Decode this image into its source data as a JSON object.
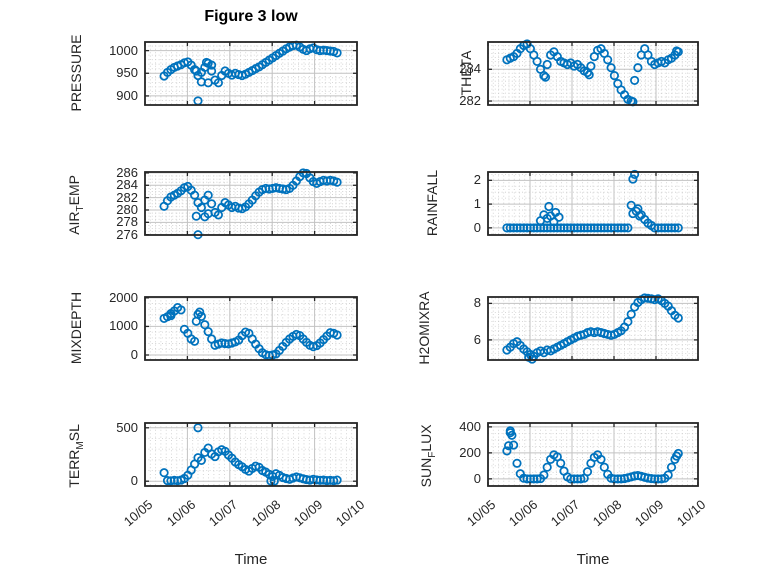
{
  "title": "Figure 3 low",
  "xlabel": "Time",
  "colors": {
    "marker": "#0072BD",
    "axis": "#262626",
    "grid_major": "#c2c2c2",
    "grid_minor": "#cccccc",
    "tick_label": "#262626",
    "title": "#000000"
  },
  "chart_data": {
    "type": "scatter",
    "xlabel": "Time",
    "x_tick_labels": [
      "10/05",
      "10/06",
      "10/07",
      "10/08",
      "10/09",
      "10/10"
    ],
    "xlim": [
      0,
      5
    ],
    "x_minor_step": 0.125,
    "grid": "major solid + minor dotted",
    "legend": "none",
    "x_unit": "days since 10/05",
    "subplots": [
      {
        "id": "pressure",
        "ylabel_pre": "PRESSURE",
        "ylabel_sub": "",
        "ylabel_post": "",
        "ylim": [
          880,
          1019
        ],
        "yticks": [
          900,
          950,
          1000
        ],
        "y_minor_step": 10,
        "x_start": 0.45,
        "x_step": 0.08,
        "values": [
          944,
          952,
          958,
          963,
          966,
          969,
          973,
          975,
          968,
          958,
          945,
          952,
          963,
          972,
          955,
          935,
          929,
          945,
          955,
          950,
          946,
          950,
          947,
          945,
          948,
          952,
          956,
          960,
          964,
          969,
          974,
          979,
          984,
          989,
          994,
          999,
          1004,
          1008,
          1011,
          1012,
          1008,
          1003,
          1000,
          1004,
          1006,
          1002,
          1000,
          1001,
          1000,
          999,
          998,
          995
        ],
        "extra_points": [
          [
            1.25,
            889
          ],
          [
            1.33,
            931
          ],
          [
            1.45,
            974
          ],
          [
            1.49,
            929
          ],
          [
            1.57,
            968
          ],
          [
            1.21,
            955
          ]
        ]
      },
      {
        "id": "theta",
        "ylabel_pre": "THETA",
        "ylabel_sub": "",
        "ylabel_post": "",
        "ylim": [
          281.75,
          285.72
        ],
        "yticks": [
          282,
          284
        ],
        "y_minor_step": 0.25,
        "x_start": 0.45,
        "x_step": 0.08,
        "values": [
          284.6,
          284.7,
          284.8,
          285.0,
          285.3,
          285.5,
          285.6,
          285.3,
          284.9,
          284.5,
          284.0,
          283.6,
          284.3,
          284.9,
          285.1,
          284.8,
          284.5,
          284.4,
          284.3,
          284.4,
          284.2,
          284.3,
          284.1,
          283.9,
          283.8,
          284.2,
          284.8,
          285.2,
          285.3,
          285.0,
          284.6,
          284.1,
          283.6,
          283.1,
          282.7,
          282.4,
          282.1,
          282.0,
          283.3,
          284.1,
          284.9,
          285.3,
          284.9,
          284.5,
          284.3,
          284.4,
          284.5,
          284.4,
          284.6,
          284.7,
          284.9,
          285.1
        ],
        "extra_points": [
          [
            1.37,
            283.5
          ],
          [
            2.41,
            283.65
          ],
          [
            3.45,
            281.95
          ],
          [
            4.49,
            285.15
          ]
        ]
      },
      {
        "id": "air-temp",
        "ylabel_pre": "AIR",
        "ylabel_sub": "T",
        "ylabel_post": "EMP",
        "ylim": [
          275.95,
          286.15
        ],
        "yticks": [
          276,
          278,
          280,
          282,
          284,
          286
        ],
        "y_minor_step": 0.5,
        "x_start": 0.45,
        "x_step": 0.08,
        "values": [
          280.6,
          281.5,
          282.1,
          282.4,
          282.7,
          283.1,
          283.6,
          283.8,
          283.2,
          282.4,
          281.2,
          280.4,
          281.6,
          282.4,
          281.0,
          279.6,
          279.2,
          280.4,
          281.2,
          280.8,
          280.4,
          280.6,
          280.3,
          280.2,
          280.5,
          281.0,
          281.6,
          282.3,
          282.9,
          283.3,
          283.5,
          283.4,
          283.5,
          283.6,
          283.5,
          283.4,
          283.3,
          283.5,
          284.0,
          284.7,
          285.4,
          286.0,
          285.9,
          285.2,
          284.6,
          284.3,
          284.6,
          284.8,
          284.7,
          284.8,
          284.7,
          284.5
        ],
        "extra_points": [
          [
            1.25,
            276.0
          ],
          [
            1.21,
            279.0
          ],
          [
            1.41,
            278.9
          ],
          [
            1.49,
            279.4
          ]
        ]
      },
      {
        "id": "rainfall",
        "ylabel_pre": "RAINFALL",
        "ylabel_sub": "",
        "ylabel_post": "",
        "ylim": [
          -0.3,
          2.35
        ],
        "yticks": [
          0,
          1,
          2
        ],
        "y_minor_step": 0.25,
        "x_start": 0.45,
        "x_step": 0.08,
        "values": [
          0,
          0,
          0,
          0,
          0,
          0,
          0,
          0,
          0,
          0,
          0,
          0,
          0,
          0,
          0,
          0,
          0,
          0,
          0,
          0,
          0,
          0,
          0,
          0,
          0,
          0,
          0,
          0,
          0,
          0,
          0,
          0,
          0,
          0,
          0,
          0,
          0,
          0.95,
          2.25,
          0.8,
          0.55,
          0.35,
          0.2,
          0.1,
          0,
          0,
          0,
          0,
          0,
          0,
          0,
          0
        ],
        "extra_points": [
          [
            1.25,
            0.3
          ],
          [
            1.33,
            0.55
          ],
          [
            1.41,
            0.4
          ],
          [
            1.45,
            0.9
          ],
          [
            1.49,
            0.5
          ],
          [
            1.57,
            0.25
          ],
          [
            1.61,
            0.65
          ],
          [
            1.69,
            0.45
          ],
          [
            3.45,
            2.05
          ],
          [
            3.45,
            0.6
          ],
          [
            3.53,
            0.7
          ],
          [
            3.61,
            0.5
          ]
        ]
      },
      {
        "id": "mixdepth",
        "ylabel_pre": "MIXDEPTH",
        "ylabel_sub": "",
        "ylabel_post": "",
        "ylim": [
          -175,
          2030
        ],
        "yticks": [
          0,
          1000,
          2000
        ],
        "y_minor_step": 200,
        "x_start": 0.45,
        "x_step": 0.08,
        "values": [
          1280,
          1340,
          1450,
          1540,
          1660,
          1580,
          900,
          760,
          560,
          480,
          1420,
          1350,
          1060,
          820,
          560,
          340,
          380,
          420,
          400,
          390,
          420,
          460,
          520,
          680,
          800,
          760,
          560,
          380,
          220,
          80,
          10,
          -20,
          0,
          40,
          160,
          300,
          440,
          560,
          650,
          720,
          680,
          560,
          440,
          340,
          290,
          330,
          420,
          540,
          660,
          780,
          760,
          700
        ],
        "extra_points": [
          [
            0.61,
            1380
          ],
          [
            1.21,
            1180
          ],
          [
            1.29,
            1500
          ]
        ]
      },
      {
        "id": "h2omixra",
        "ylabel_pre": "H2OMIXRA",
        "ylabel_sub": "",
        "ylabel_post": "",
        "ylim": [
          4.9,
          8.35
        ],
        "yticks": [
          6,
          8
        ],
        "y_minor_step": 0.25,
        "x_start": 0.45,
        "x_step": 0.08,
        "values": [
          5.45,
          5.6,
          5.8,
          5.9,
          5.7,
          5.5,
          5.35,
          5.2,
          5.1,
          5.3,
          5.4,
          5.3,
          5.45,
          5.4,
          5.5,
          5.6,
          5.7,
          5.8,
          5.9,
          6.0,
          6.1,
          6.2,
          6.25,
          6.3,
          6.4,
          6.45,
          6.4,
          6.45,
          6.4,
          6.35,
          6.3,
          6.25,
          6.3,
          6.4,
          6.5,
          6.7,
          7.0,
          7.4,
          7.8,
          8.05,
          8.2,
          8.3,
          8.28,
          8.25,
          8.2,
          8.25,
          8.15,
          8.0,
          7.85,
          7.6,
          7.35,
          7.2
        ],
        "extra_points": [
          [
            0.97,
            5.05
          ],
          [
            1.05,
            4.95
          ]
        ]
      },
      {
        "id": "terr-msl",
        "ylabel_pre": "TERR",
        "ylabel_sub": "M",
        "ylabel_post": "SL",
        "ylim": [
          -45,
          545
        ],
        "yticks": [
          0,
          500
        ],
        "y_minor_step": 100,
        "x_start": 0.45,
        "x_step": 0.08,
        "values": [
          80,
          6,
          4,
          8,
          5,
          10,
          25,
          55,
          105,
          160,
          220,
          195,
          270,
          310,
          255,
          230,
          275,
          295,
          280,
          245,
          215,
          180,
          155,
          135,
          110,
          95,
          120,
          140,
          130,
          100,
          85,
          65,
          45,
          70,
          55,
          35,
          25,
          18,
          30,
          40,
          32,
          22,
          15,
          10,
          18,
          12,
          8,
          10,
          6,
          8,
          5,
          10
        ],
        "extra_points": [
          [
            1.25,
            500
          ],
          [
            2.97,
            2
          ],
          [
            3.05,
            1
          ]
        ]
      },
      {
        "id": "sun-flux",
        "ylabel_pre": "SUN",
        "ylabel_sub": "F",
        "ylabel_post": "LUX",
        "ylim": [
          -55,
          430
        ],
        "yticks": [
          0,
          200,
          400
        ],
        "y_minor_step": 50,
        "x_start": 0.45,
        "x_step": 0.08,
        "values": [
          215,
          355,
          260,
          120,
          40,
          5,
          0,
          0,
          0,
          0,
          2,
          30,
          90,
          150,
          185,
          170,
          120,
          60,
          15,
          0,
          0,
          0,
          0,
          5,
          55,
          120,
          165,
          185,
          150,
          90,
          35,
          5,
          0,
          0,
          0,
          3,
          8,
          15,
          22,
          25,
          20,
          12,
          6,
          2,
          0,
          0,
          0,
          5,
          30,
          90,
          150,
          195
        ],
        "extra_points": [
          [
            0.49,
            255
          ],
          [
            0.53,
            370
          ],
          [
            0.57,
            335
          ],
          [
            4.49,
            175
          ]
        ]
      }
    ]
  }
}
